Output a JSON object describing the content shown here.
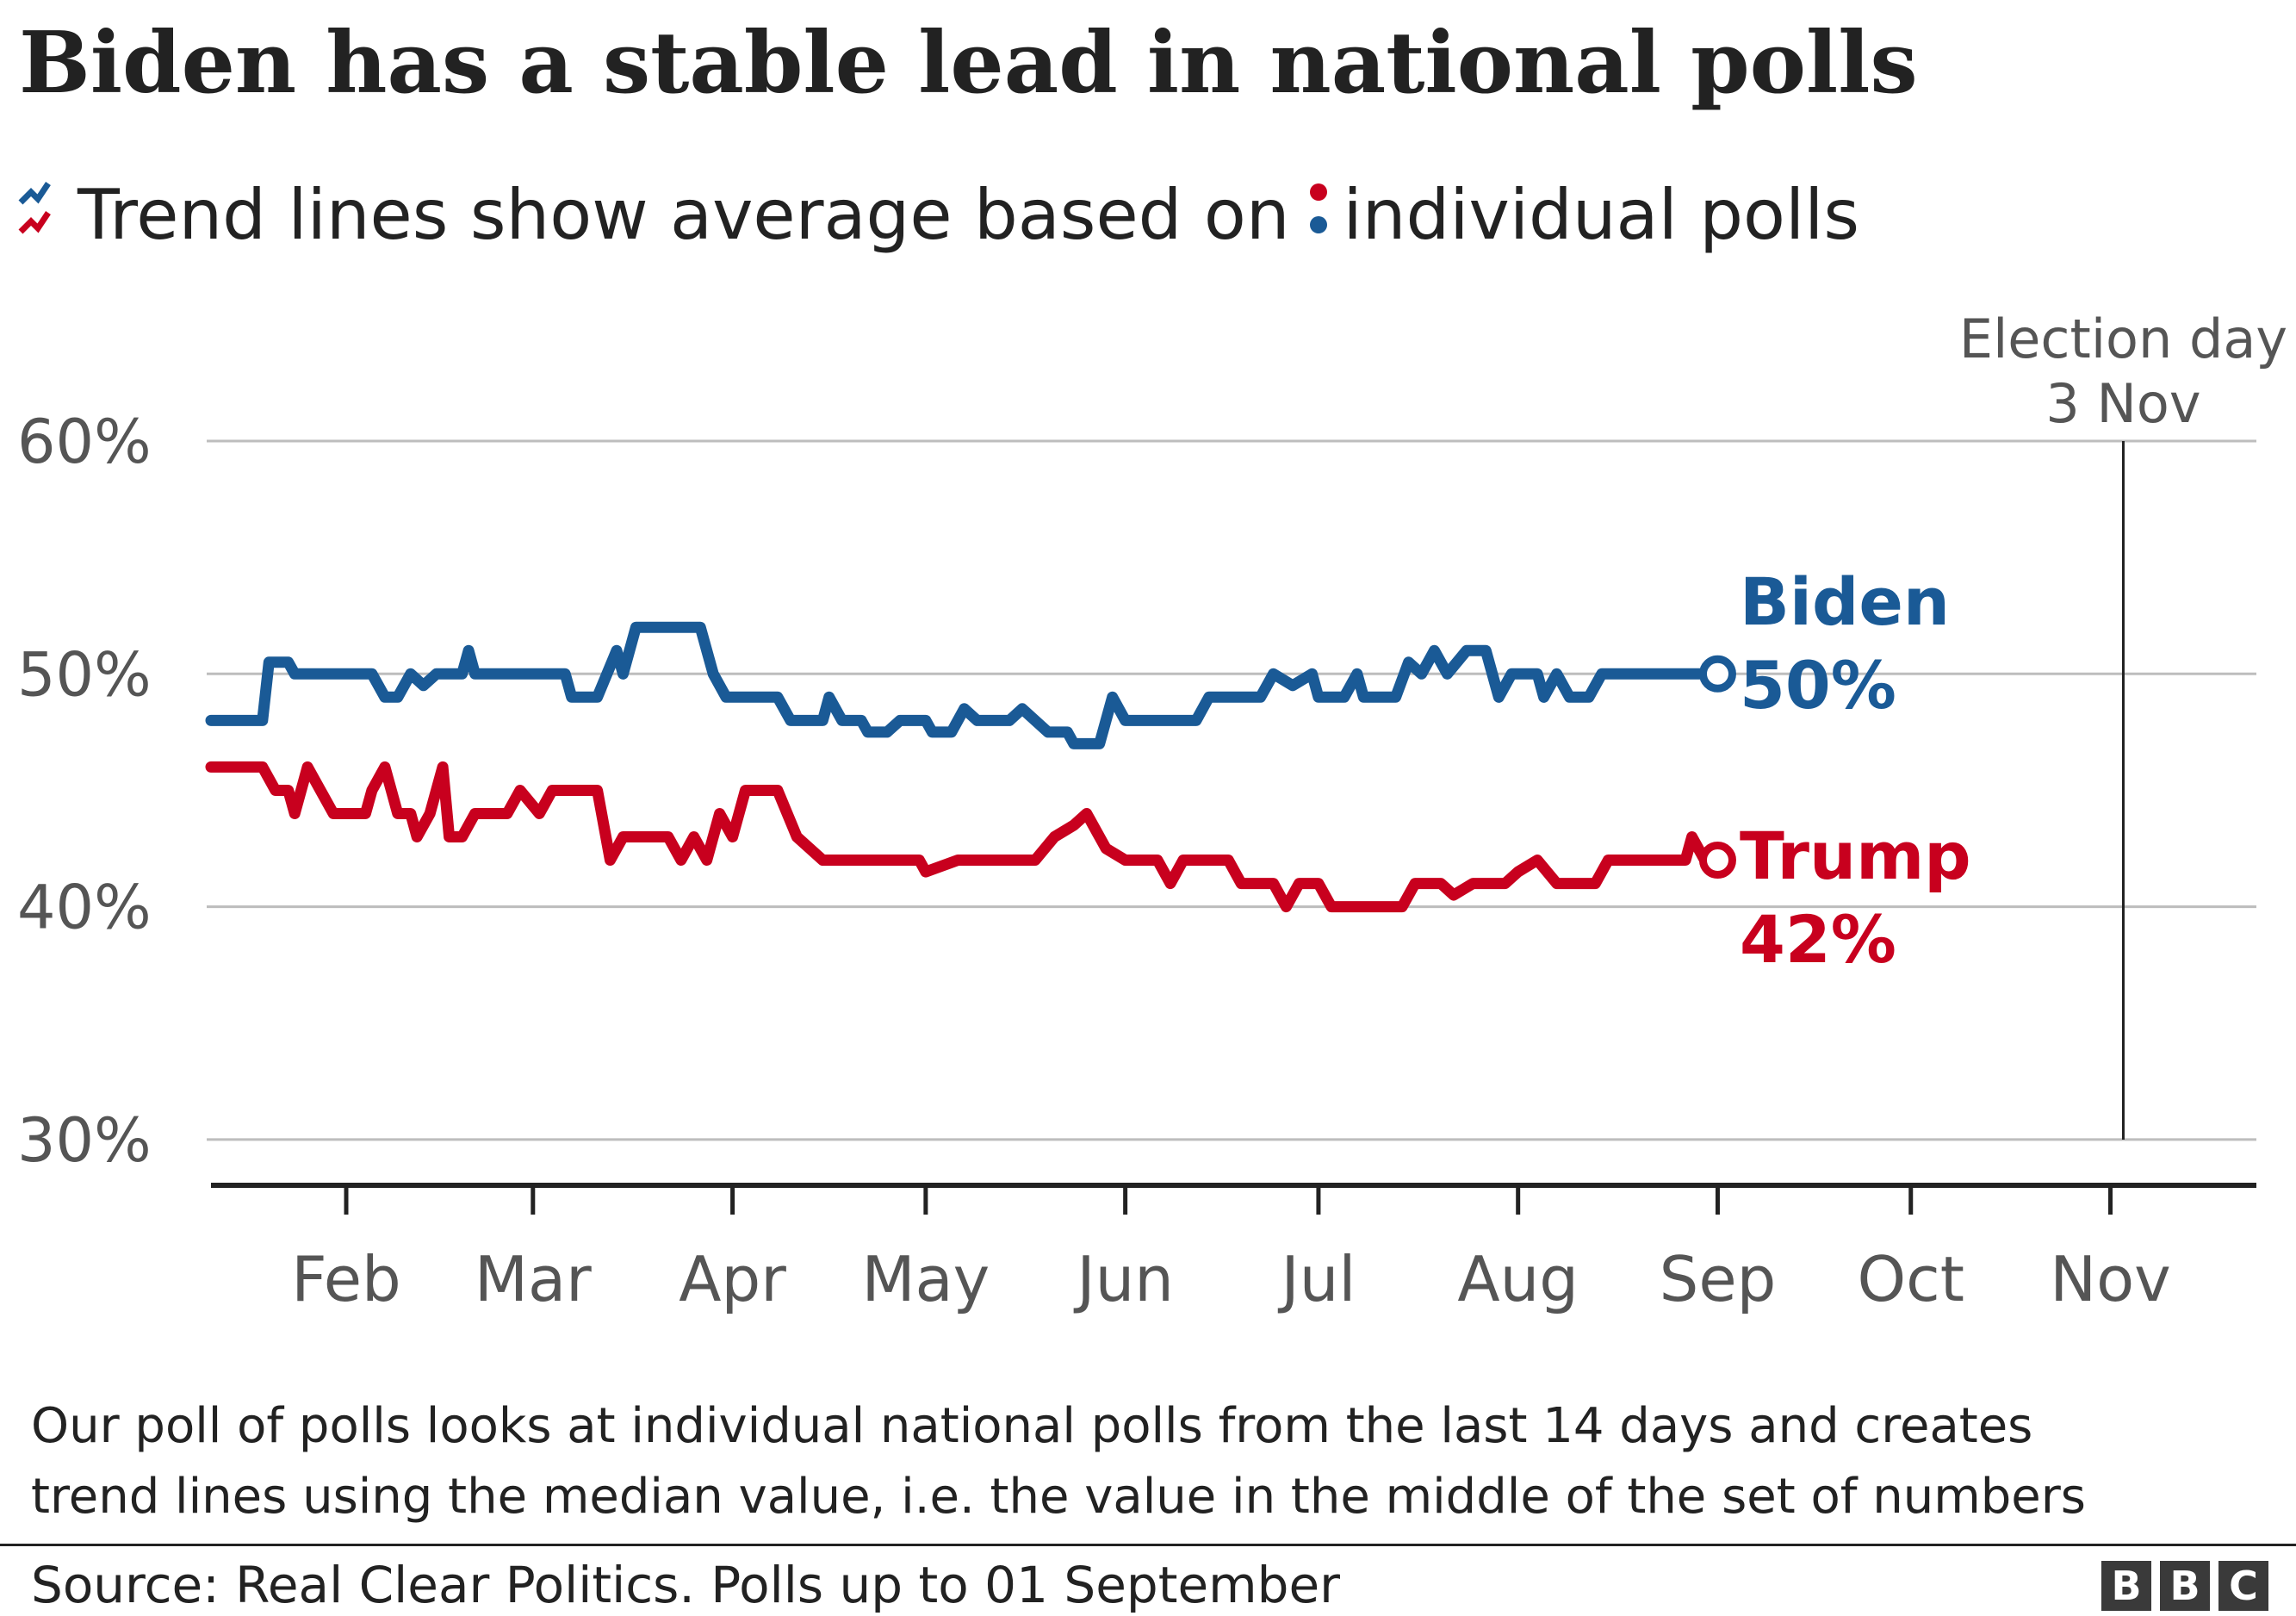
{
  "title": "Biden has a stable lead in national polls",
  "subtitle_left": "Trend lines show average based on",
  "subtitle_right": "individual polls",
  "colors": {
    "biden": "#1a5a96",
    "trump": "#c8001e",
    "grid": "#bdbdbd",
    "axis": "#222222",
    "tick_text": "#555555"
  },
  "footnote_line1": "Our poll of polls looks at individual national polls from the last 14 days and creates",
  "footnote_line2": "trend lines using the median value, i.e. the value in the middle of the set of numbers",
  "source": "Source: Real Clear Politics. Polls up to 01 September",
  "logo_letters": [
    "B",
    "B",
    "C"
  ],
  "chart_data": {
    "type": "line",
    "x_range": [
      "2020-01-11",
      "2020-11-23"
    ],
    "y_range": [
      28,
      63
    ],
    "y_ticks": [
      {
        "value": 60,
        "label": "60%"
      },
      {
        "value": 50,
        "label": "50%"
      },
      {
        "value": 40,
        "label": "40%"
      },
      {
        "value": 30,
        "label": "30%"
      }
    ],
    "x_ticks": [
      {
        "date": "2020-02-01",
        "label": "Feb"
      },
      {
        "date": "2020-03-01",
        "label": "Mar"
      },
      {
        "date": "2020-04-01",
        "label": "Apr"
      },
      {
        "date": "2020-05-01",
        "label": "May"
      },
      {
        "date": "2020-06-01",
        "label": "Jun"
      },
      {
        "date": "2020-07-01",
        "label": "Jul"
      },
      {
        "date": "2020-08-01",
        "label": "Aug"
      },
      {
        "date": "2020-09-01",
        "label": "Sep"
      },
      {
        "date": "2020-10-01",
        "label": "Oct"
      },
      {
        "date": "2020-11-01",
        "label": "Nov"
      }
    ],
    "grid": true,
    "annotation": {
      "date": "2020-11-03",
      "line1": "Election day",
      "line2": "3 Nov"
    },
    "series": [
      {
        "name": "Biden",
        "end_label": "50%",
        "color": "#1a5a96",
        "trend": [
          [
            "2020-01-11",
            48
          ],
          [
            "2020-01-19",
            48
          ],
          [
            "2020-01-20",
            50.5
          ],
          [
            "2020-01-23",
            50.5
          ],
          [
            "2020-01-24",
            50
          ],
          [
            "2020-02-05",
            50
          ],
          [
            "2020-02-07",
            49
          ],
          [
            "2020-02-09",
            49
          ],
          [
            "2020-02-11",
            50
          ],
          [
            "2020-02-13",
            49.5
          ],
          [
            "2020-02-15",
            50
          ],
          [
            "2020-02-19",
            50
          ],
          [
            "2020-02-20",
            51
          ],
          [
            "2020-02-21",
            50
          ],
          [
            "2020-02-25",
            50
          ],
          [
            "2020-03-06",
            50
          ],
          [
            "2020-03-07",
            49
          ],
          [
            "2020-03-11",
            49
          ],
          [
            "2020-03-14",
            51
          ],
          [
            "2020-03-15",
            50
          ],
          [
            "2020-03-17",
            52
          ],
          [
            "2020-03-27",
            52
          ],
          [
            "2020-03-29",
            50
          ],
          [
            "2020-03-31",
            49
          ],
          [
            "2020-04-08",
            49
          ],
          [
            "2020-04-10",
            48
          ],
          [
            "2020-04-15",
            48
          ],
          [
            "2020-04-16",
            49
          ],
          [
            "2020-04-18",
            48
          ],
          [
            "2020-04-21",
            48
          ],
          [
            "2020-04-22",
            47.5
          ],
          [
            "2020-04-25",
            47.5
          ],
          [
            "2020-04-27",
            48
          ],
          [
            "2020-05-01",
            48
          ],
          [
            "2020-05-02",
            47.5
          ],
          [
            "2020-05-05",
            47.5
          ],
          [
            "2020-05-07",
            48.5
          ],
          [
            "2020-05-09",
            48
          ],
          [
            "2020-05-14",
            48
          ],
          [
            "2020-05-16",
            48.5
          ],
          [
            "2020-05-18",
            48
          ],
          [
            "2020-05-20",
            47.5
          ],
          [
            "2020-05-23",
            47.5
          ],
          [
            "2020-05-24",
            47
          ],
          [
            "2020-05-28",
            47
          ],
          [
            "2020-05-30",
            49
          ],
          [
            "2020-06-01",
            48
          ],
          [
            "2020-06-12",
            48
          ],
          [
            "2020-06-14",
            49
          ],
          [
            "2020-06-22",
            49
          ],
          [
            "2020-06-24",
            50
          ],
          [
            "2020-06-27",
            49.5
          ],
          [
            "2020-06-30",
            50
          ],
          [
            "2020-07-01",
            49
          ],
          [
            "2020-07-05",
            49
          ],
          [
            "2020-07-07",
            50
          ],
          [
            "2020-07-08",
            49
          ],
          [
            "2020-07-13",
            49
          ],
          [
            "2020-07-15",
            50.5
          ],
          [
            "2020-07-17",
            50
          ],
          [
            "2020-07-19",
            51
          ],
          [
            "2020-07-21",
            50
          ],
          [
            "2020-07-24",
            51
          ],
          [
            "2020-07-27",
            51
          ],
          [
            "2020-07-29",
            49
          ],
          [
            "2020-07-31",
            50
          ],
          [
            "2020-08-04",
            50
          ],
          [
            "2020-08-05",
            49
          ],
          [
            "2020-08-07",
            50
          ],
          [
            "2020-08-09",
            49
          ],
          [
            "2020-08-12",
            49
          ],
          [
            "2020-08-14",
            50
          ],
          [
            "2020-09-01",
            50
          ]
        ],
        "polls_placeholder_biden": []
      },
      {
        "name": "Trump",
        "end_label": "42%",
        "color": "#c8001e",
        "trend": [
          [
            "2020-01-11",
            46
          ],
          [
            "2020-01-19",
            46
          ],
          [
            "2020-01-21",
            45
          ],
          [
            "2020-01-23",
            45
          ],
          [
            "2020-01-24",
            44
          ],
          [
            "2020-01-26",
            46
          ],
          [
            "2020-01-28",
            45
          ],
          [
            "2020-01-30",
            44
          ],
          [
            "2020-02-04",
            44
          ],
          [
            "2020-02-05",
            45
          ],
          [
            "2020-02-07",
            46
          ],
          [
            "2020-02-09",
            44
          ],
          [
            "2020-02-11",
            44
          ],
          [
            "2020-02-12",
            43
          ],
          [
            "2020-02-14",
            44
          ],
          [
            "2020-02-16",
            46
          ],
          [
            "2020-02-17",
            43
          ],
          [
            "2020-02-19",
            43
          ],
          [
            "2020-02-21",
            44
          ],
          [
            "2020-02-26",
            44
          ],
          [
            "2020-02-28",
            45
          ],
          [
            "2020-03-02",
            44
          ],
          [
            "2020-03-04",
            45
          ],
          [
            "2020-03-11",
            45
          ],
          [
            "2020-03-13",
            42
          ],
          [
            "2020-03-15",
            43
          ],
          [
            "2020-03-22",
            43
          ],
          [
            "2020-03-24",
            42
          ],
          [
            "2020-03-26",
            43
          ],
          [
            "2020-03-28",
            42
          ],
          [
            "2020-03-30",
            44
          ],
          [
            "2020-04-01",
            43
          ],
          [
            "2020-04-03",
            45
          ],
          [
            "2020-04-08",
            45
          ],
          [
            "2020-04-11",
            43
          ],
          [
            "2020-04-15",
            42
          ],
          [
            "2020-04-30",
            42
          ],
          [
            "2020-05-01",
            41.5
          ],
          [
            "2020-05-06",
            42
          ],
          [
            "2020-05-18",
            42
          ],
          [
            "2020-05-21",
            43
          ],
          [
            "2020-05-24",
            43.5
          ],
          [
            "2020-05-26",
            44
          ],
          [
            "2020-05-29",
            42.5
          ],
          [
            "2020-06-01",
            42
          ],
          [
            "2020-06-06",
            42
          ],
          [
            "2020-06-08",
            41
          ],
          [
            "2020-06-10",
            42
          ],
          [
            "2020-06-17",
            42
          ],
          [
            "2020-06-19",
            41
          ],
          [
            "2020-06-24",
            41
          ],
          [
            "2020-06-26",
            40
          ],
          [
            "2020-06-28",
            41
          ],
          [
            "2020-07-01",
            41
          ],
          [
            "2020-07-03",
            40
          ],
          [
            "2020-07-14",
            40
          ],
          [
            "2020-07-16",
            41
          ],
          [
            "2020-07-20",
            41
          ],
          [
            "2020-07-22",
            40.5
          ],
          [
            "2020-07-25",
            41
          ],
          [
            "2020-07-30",
            41
          ],
          [
            "2020-08-01",
            41.5
          ],
          [
            "2020-08-04",
            42
          ],
          [
            "2020-08-07",
            41
          ],
          [
            "2020-08-13",
            41
          ],
          [
            "2020-08-15",
            42
          ],
          [
            "2020-08-27",
            42
          ],
          [
            "2020-08-28",
            43
          ],
          [
            "2020-08-30",
            42
          ],
          [
            "2020-09-01",
            42
          ]
        ],
        "polls_placeholder_trump": []
      }
    ]
  }
}
